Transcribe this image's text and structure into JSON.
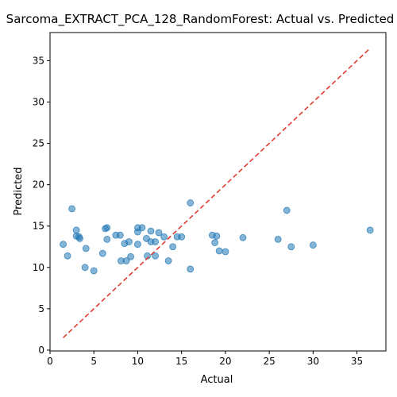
{
  "chart_data": {
    "type": "scatter",
    "title": "Sarcoma_EXTRACT_PCA_128_RandomForest: Actual vs. Predicted",
    "xlabel": "Actual",
    "ylabel": "Predicted",
    "xlim": [
      0,
      38.3
    ],
    "ylim": [
      -0.1,
      38.4
    ],
    "xticks": [
      0,
      5,
      10,
      15,
      20,
      25,
      30,
      35
    ],
    "yticks": [
      0,
      5,
      10,
      15,
      20,
      25,
      30,
      35
    ],
    "grid": false,
    "legend": "none",
    "points": [
      [
        1.5,
        12.8
      ],
      [
        2.0,
        11.4
      ],
      [
        2.5,
        17.1
      ],
      [
        3.0,
        14.5
      ],
      [
        3.0,
        13.8
      ],
      [
        3.3,
        13.7
      ],
      [
        3.4,
        13.5
      ],
      [
        4.0,
        10.0
      ],
      [
        4.1,
        12.3
      ],
      [
        5.0,
        9.6
      ],
      [
        6.0,
        11.7
      ],
      [
        6.3,
        14.7
      ],
      [
        6.5,
        14.8
      ],
      [
        6.5,
        13.4
      ],
      [
        7.5,
        13.9
      ],
      [
        8.0,
        13.9
      ],
      [
        8.1,
        10.8
      ],
      [
        8.5,
        12.9
      ],
      [
        8.7,
        10.8
      ],
      [
        9.0,
        13.1
      ],
      [
        9.2,
        11.3
      ],
      [
        10.0,
        14.8
      ],
      [
        10.0,
        14.3
      ],
      [
        10.0,
        12.8
      ],
      [
        10.5,
        14.8
      ],
      [
        11.0,
        13.5
      ],
      [
        11.1,
        11.4
      ],
      [
        11.5,
        14.4
      ],
      [
        11.5,
        13.1
      ],
      [
        12.0,
        13.1
      ],
      [
        12.0,
        11.4
      ],
      [
        12.4,
        14.2
      ],
      [
        13.0,
        13.7
      ],
      [
        13.5,
        10.8
      ],
      [
        14.0,
        12.5
      ],
      [
        14.5,
        13.7
      ],
      [
        15.0,
        13.7
      ],
      [
        16.0,
        17.8
      ],
      [
        16.0,
        9.8
      ],
      [
        18.5,
        13.9
      ],
      [
        18.8,
        13.0
      ],
      [
        19.0,
        13.8
      ],
      [
        19.3,
        12.0
      ],
      [
        20.0,
        11.9
      ],
      [
        22.0,
        13.6
      ],
      [
        26.0,
        13.4
      ],
      [
        27.0,
        16.9
      ],
      [
        27.5,
        12.5
      ],
      [
        30.0,
        12.7
      ],
      [
        36.5,
        14.5
      ]
    ],
    "reference_line": [
      [
        1.5,
        1.5
      ],
      [
        36.5,
        36.5
      ]
    ],
    "colors": {
      "point": "#1f77b4",
      "reference_line": "#e03c31",
      "axes": "#000000"
    }
  }
}
